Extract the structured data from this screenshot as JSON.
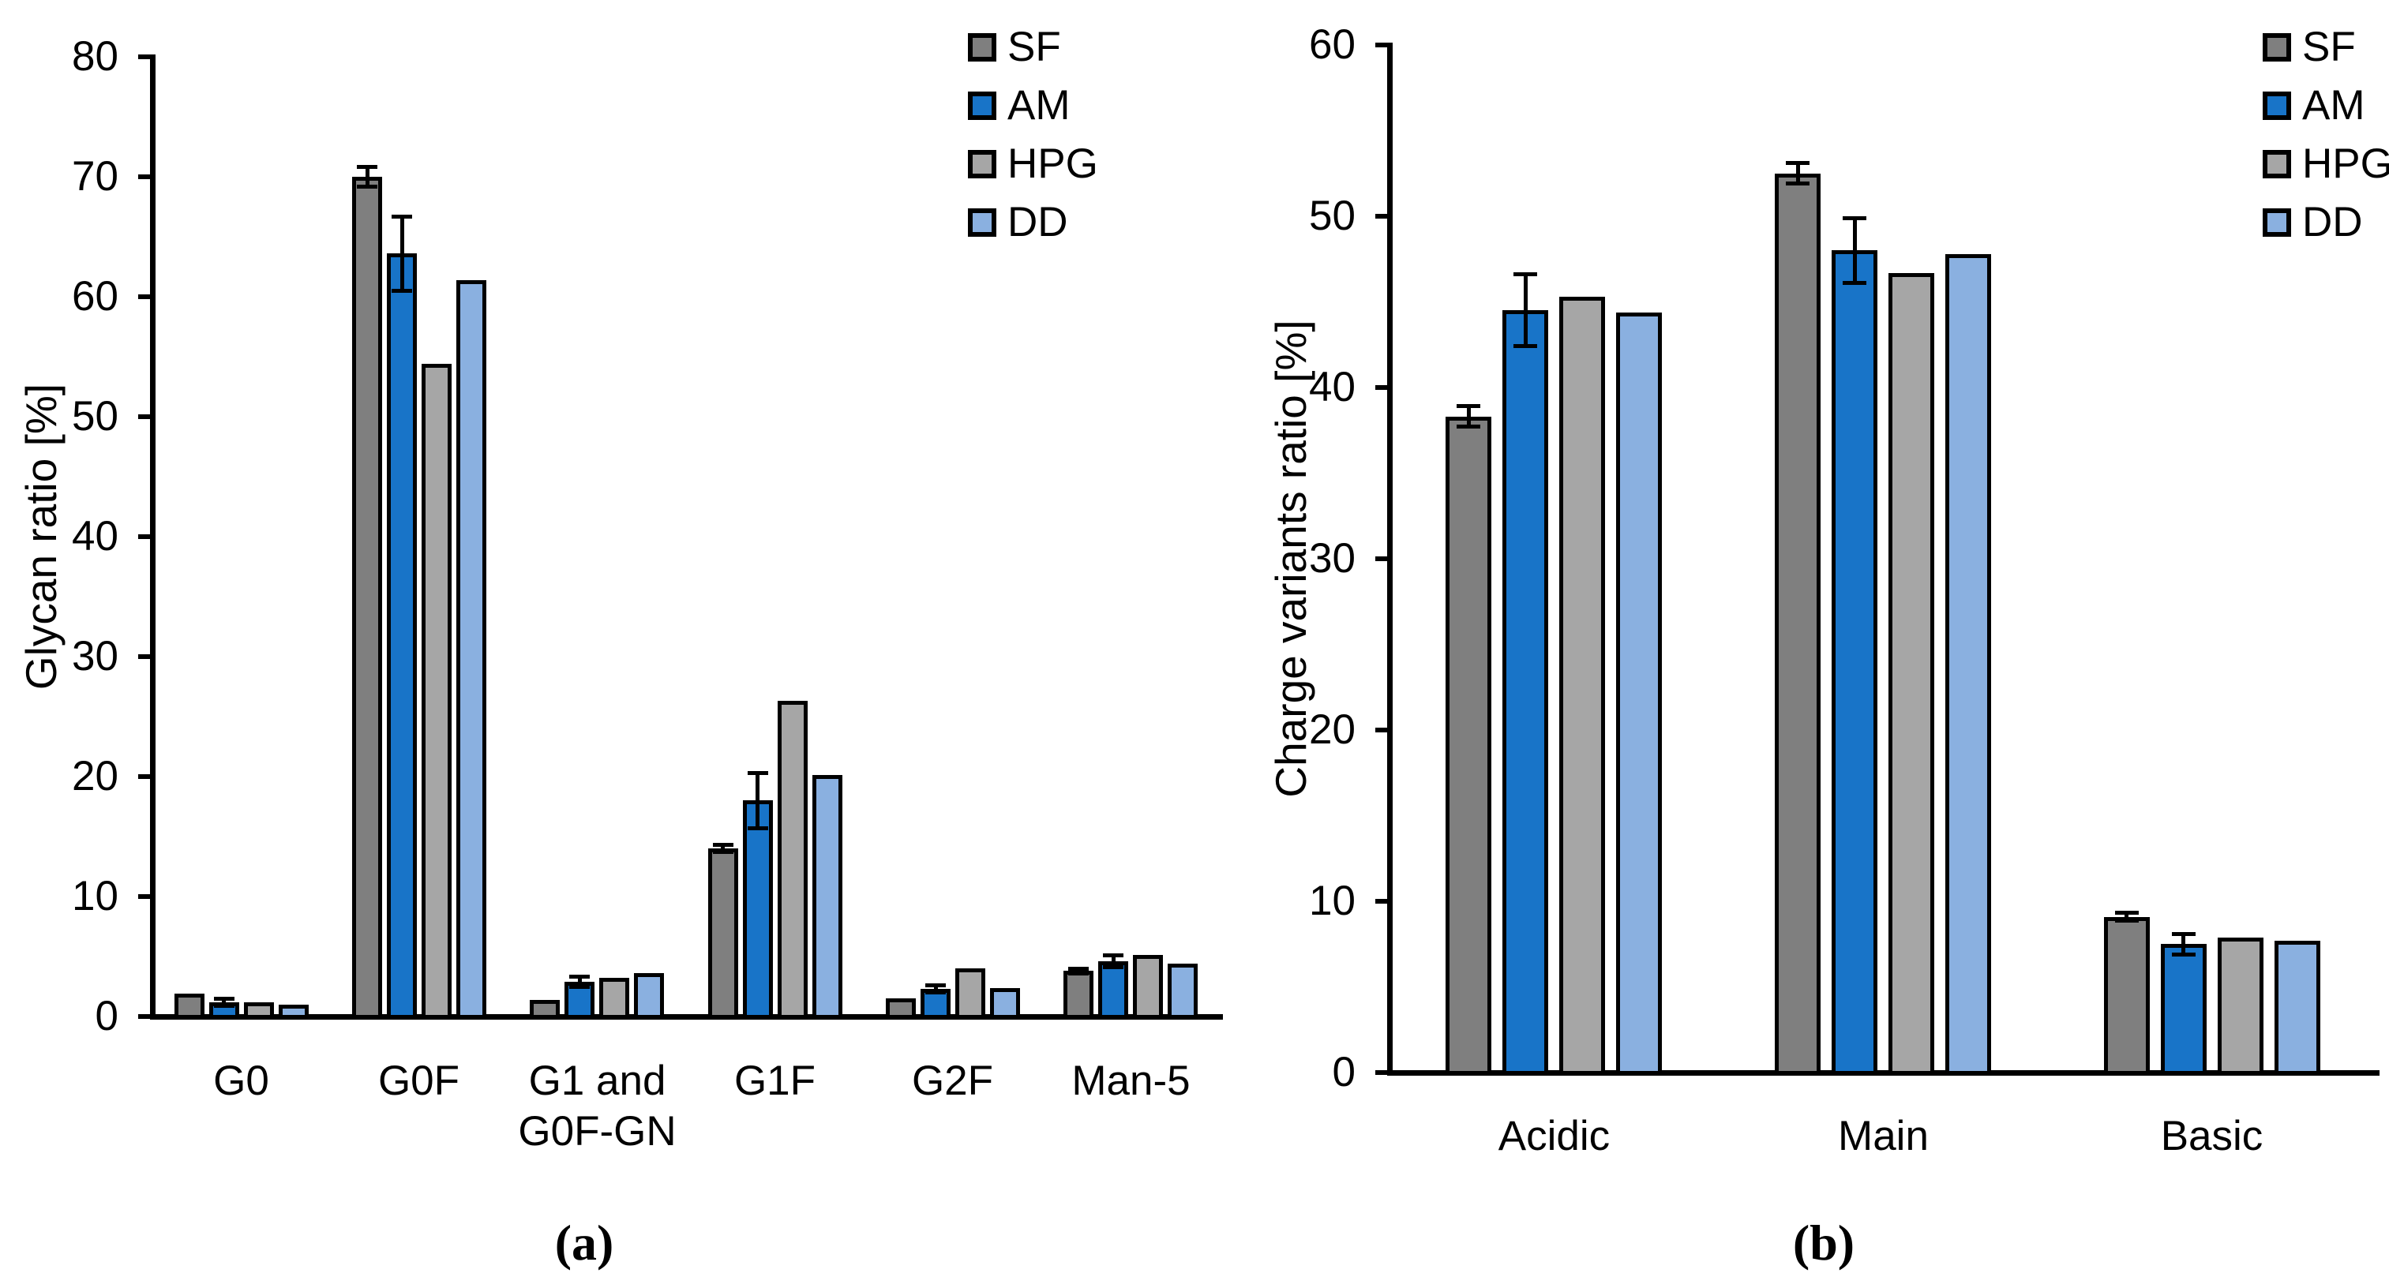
{
  "figure": {
    "panel_a_label": "(a)",
    "panel_b_label": "(b)"
  },
  "colors": {
    "SF": "#7F7F7F",
    "AM": "#1874C8",
    "HPG": "#A6A6A6",
    "DD": "#8AB0E0",
    "outline": "#000000",
    "error_bars": "#000000",
    "background": "#FFFFFF"
  },
  "legend": {
    "entries": [
      "SF",
      "AM",
      "HPG",
      "DD"
    ]
  },
  "chart_data": [
    {
      "type": "bar",
      "panel": "a",
      "title": "",
      "xlabel": "",
      "ylabel": "Glycan ratio [%]",
      "ylim": [
        0,
        80
      ],
      "ytick_step": 10,
      "yticks": [
        0,
        10,
        20,
        30,
        40,
        50,
        60,
        70,
        80
      ],
      "grid": false,
      "legend_position": "top-right-inside",
      "categories": [
        "G0",
        "G0F",
        "G1 and\nG0F-GN",
        "G1F",
        "G2F",
        "Man-5"
      ],
      "series": [
        {
          "name": "SF",
          "color": "#7F7F7F",
          "values": [
            1.9,
            70.0,
            1.4,
            14.0,
            1.5,
            3.8
          ],
          "errors": [
            0,
            0.8,
            0,
            0.3,
            0,
            0.2
          ]
        },
        {
          "name": "AM",
          "color": "#1874C8",
          "values": [
            1.2,
            63.6,
            2.9,
            18.0,
            2.3,
            4.6
          ],
          "errors": [
            0.3,
            3.1,
            0.4,
            2.3,
            0.3,
            0.5
          ]
        },
        {
          "name": "HPG",
          "color": "#A6A6A6",
          "values": [
            1.2,
            54.4,
            3.2,
            26.3,
            4.0,
            5.1
          ],
          "errors": [
            0,
            0,
            0,
            0,
            0,
            0
          ]
        },
        {
          "name": "DD",
          "color": "#8AB0E0",
          "values": [
            1.0,
            61.4,
            3.6,
            20.1,
            2.4,
            4.4
          ],
          "errors": [
            0,
            0,
            0,
            0,
            0,
            0
          ]
        }
      ]
    },
    {
      "type": "bar",
      "panel": "b",
      "title": "",
      "xlabel": "",
      "ylabel": "Charge variants ratio [%]",
      "ylim": [
        0,
        60
      ],
      "ytick_step": 10,
      "yticks": [
        0,
        10,
        20,
        30,
        40,
        50,
        60
      ],
      "grid": false,
      "legend_position": "top-right-inside",
      "categories": [
        "Acidic",
        "Main",
        "Basic"
      ],
      "series": [
        {
          "name": "SF",
          "color": "#7F7F7F",
          "values": [
            38.3,
            52.5,
            9.1
          ],
          "errors": [
            0.6,
            0.6,
            0.25
          ]
        },
        {
          "name": "AM",
          "color": "#1874C8",
          "values": [
            44.5,
            48.0,
            7.5
          ],
          "errors": [
            2.1,
            1.9,
            0.6
          ]
        },
        {
          "name": "HPG",
          "color": "#A6A6A6",
          "values": [
            45.3,
            46.7,
            7.9
          ],
          "errors": [
            0,
            0,
            0
          ]
        },
        {
          "name": "DD",
          "color": "#8AB0E0",
          "values": [
            44.4,
            47.8,
            7.7
          ],
          "errors": [
            0,
            0,
            0
          ]
        }
      ]
    }
  ]
}
